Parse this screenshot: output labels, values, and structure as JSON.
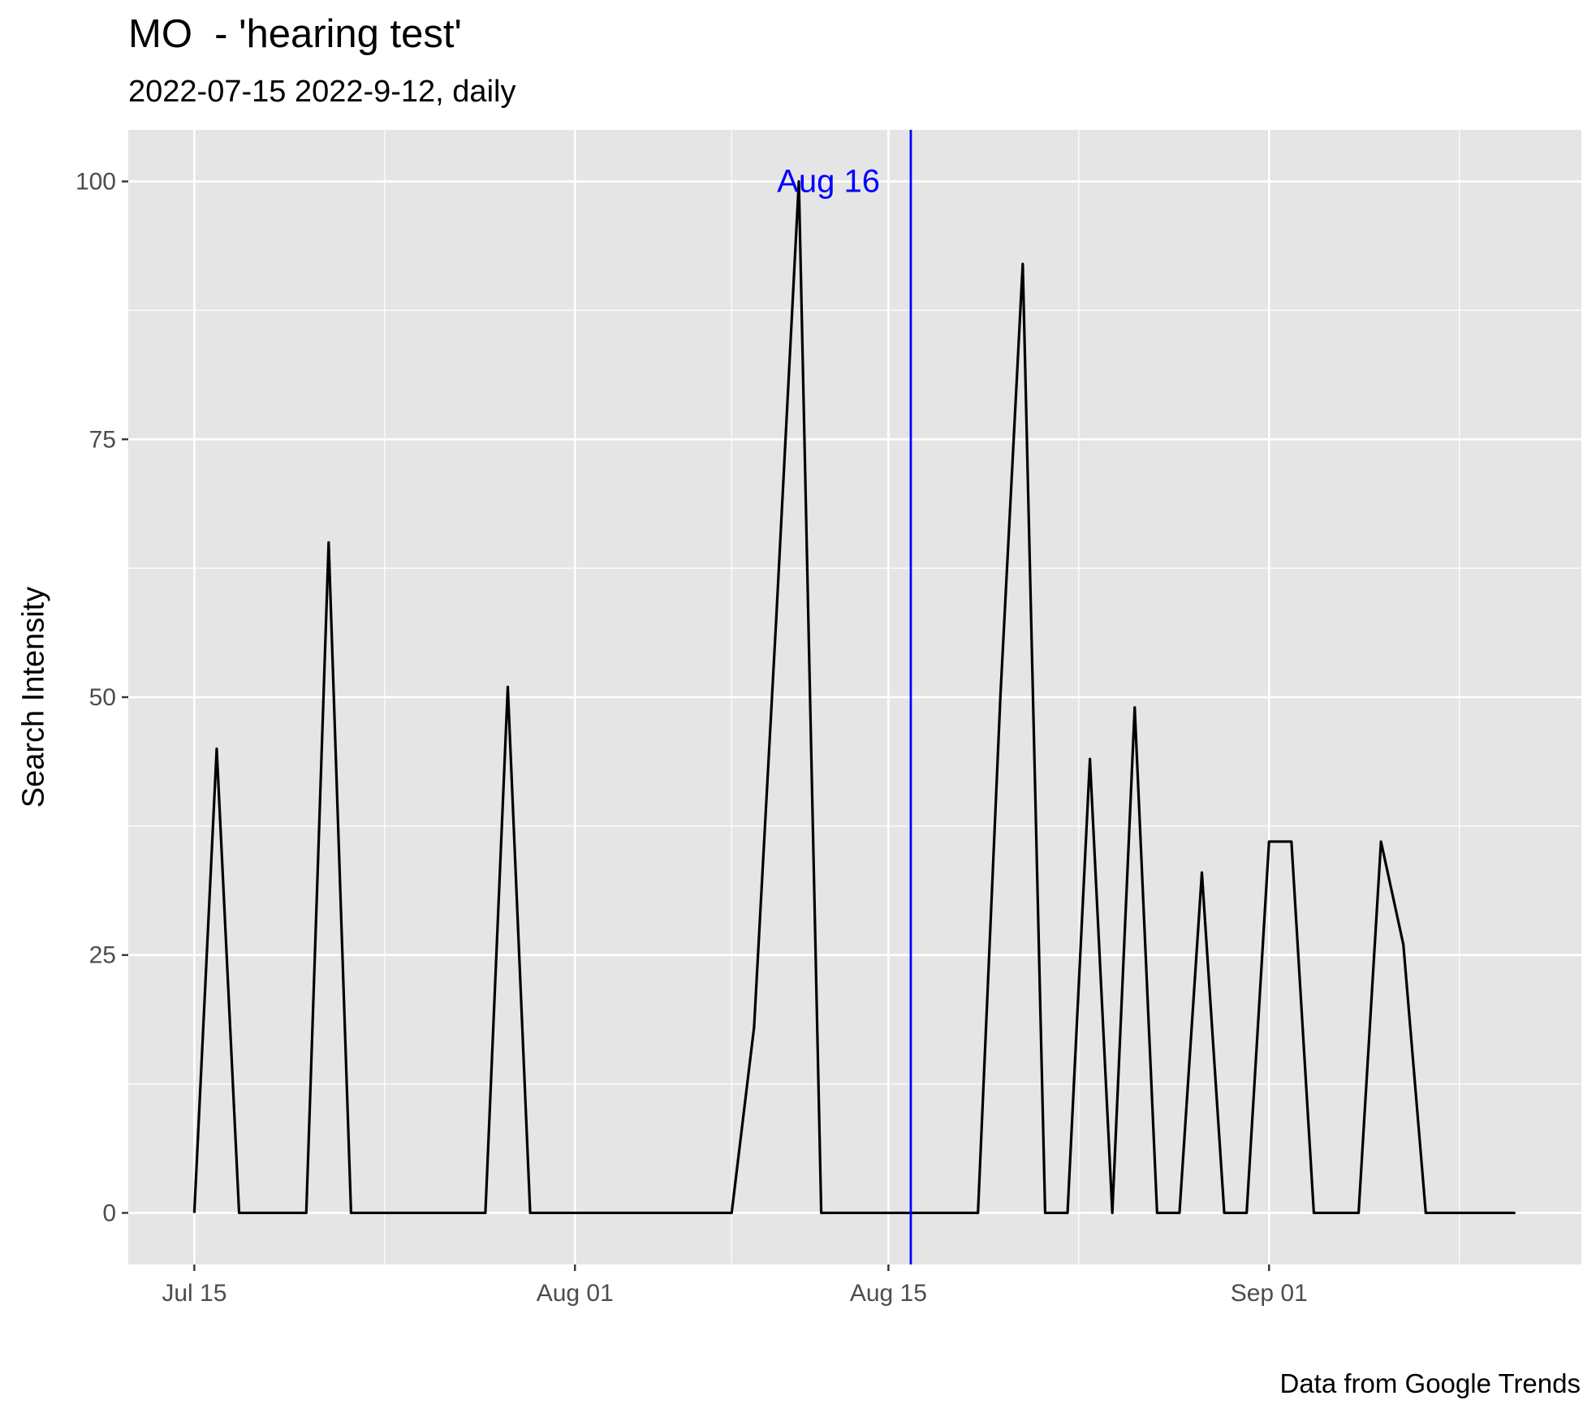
{
  "chart_data": {
    "type": "line",
    "title": "MO  - 'hearing test'",
    "subtitle": "2022-07-15 2022-9-12, daily",
    "caption": "Data from Google Trends",
    "xlabel": "",
    "ylabel": "Search Intensity",
    "x_ticks": [
      "Jul 15",
      "Aug 01",
      "Aug 15",
      "Sep 01"
    ],
    "y_ticks": [
      0,
      25,
      50,
      75,
      100
    ],
    "ylim": [
      -5,
      105
    ],
    "grid": true,
    "x": [
      "2022-07-15",
      "2022-07-16",
      "2022-07-17",
      "2022-07-18",
      "2022-07-19",
      "2022-07-20",
      "2022-07-21",
      "2022-07-22",
      "2022-07-23",
      "2022-07-24",
      "2022-07-25",
      "2022-07-26",
      "2022-07-27",
      "2022-07-28",
      "2022-07-29",
      "2022-07-30",
      "2022-07-31",
      "2022-08-01",
      "2022-08-02",
      "2022-08-03",
      "2022-08-04",
      "2022-08-05",
      "2022-08-06",
      "2022-08-07",
      "2022-08-08",
      "2022-08-09",
      "2022-08-10",
      "2022-08-11",
      "2022-08-12",
      "2022-08-13",
      "2022-08-14",
      "2022-08-15",
      "2022-08-16",
      "2022-08-17",
      "2022-08-18",
      "2022-08-19",
      "2022-08-20",
      "2022-08-21",
      "2022-08-22",
      "2022-08-23",
      "2022-08-24",
      "2022-08-25",
      "2022-08-26",
      "2022-08-27",
      "2022-08-28",
      "2022-08-29",
      "2022-08-30",
      "2022-08-31",
      "2022-09-01",
      "2022-09-02",
      "2022-09-03",
      "2022-09-04",
      "2022-09-05",
      "2022-09-06",
      "2022-09-07",
      "2022-09-08",
      "2022-09-09",
      "2022-09-10",
      "2022-09-11",
      "2022-09-12"
    ],
    "series": [
      {
        "values": [
          0,
          45,
          0,
          0,
          0,
          0,
          65,
          0,
          0,
          0,
          0,
          0,
          0,
          0,
          51,
          0,
          0,
          0,
          0,
          0,
          0,
          0,
          0,
          0,
          0,
          18,
          58,
          100,
          0,
          0,
          0,
          0,
          0,
          0,
          0,
          0,
          50,
          92,
          0,
          0,
          44,
          0,
          49,
          0,
          0,
          33,
          0,
          0,
          36,
          36,
          0,
          0,
          0,
          36,
          26,
          0,
          0,
          0,
          0,
          0
        ],
        "color": "#000000"
      }
    ],
    "annotation": {
      "x": "2022-08-16",
      "label": "Aug 16",
      "color": "#0000ff"
    },
    "colors": {
      "panel": "#e5e5e5",
      "grid": "#ffffff",
      "line": "#000000",
      "vline": "#0000ff"
    }
  }
}
